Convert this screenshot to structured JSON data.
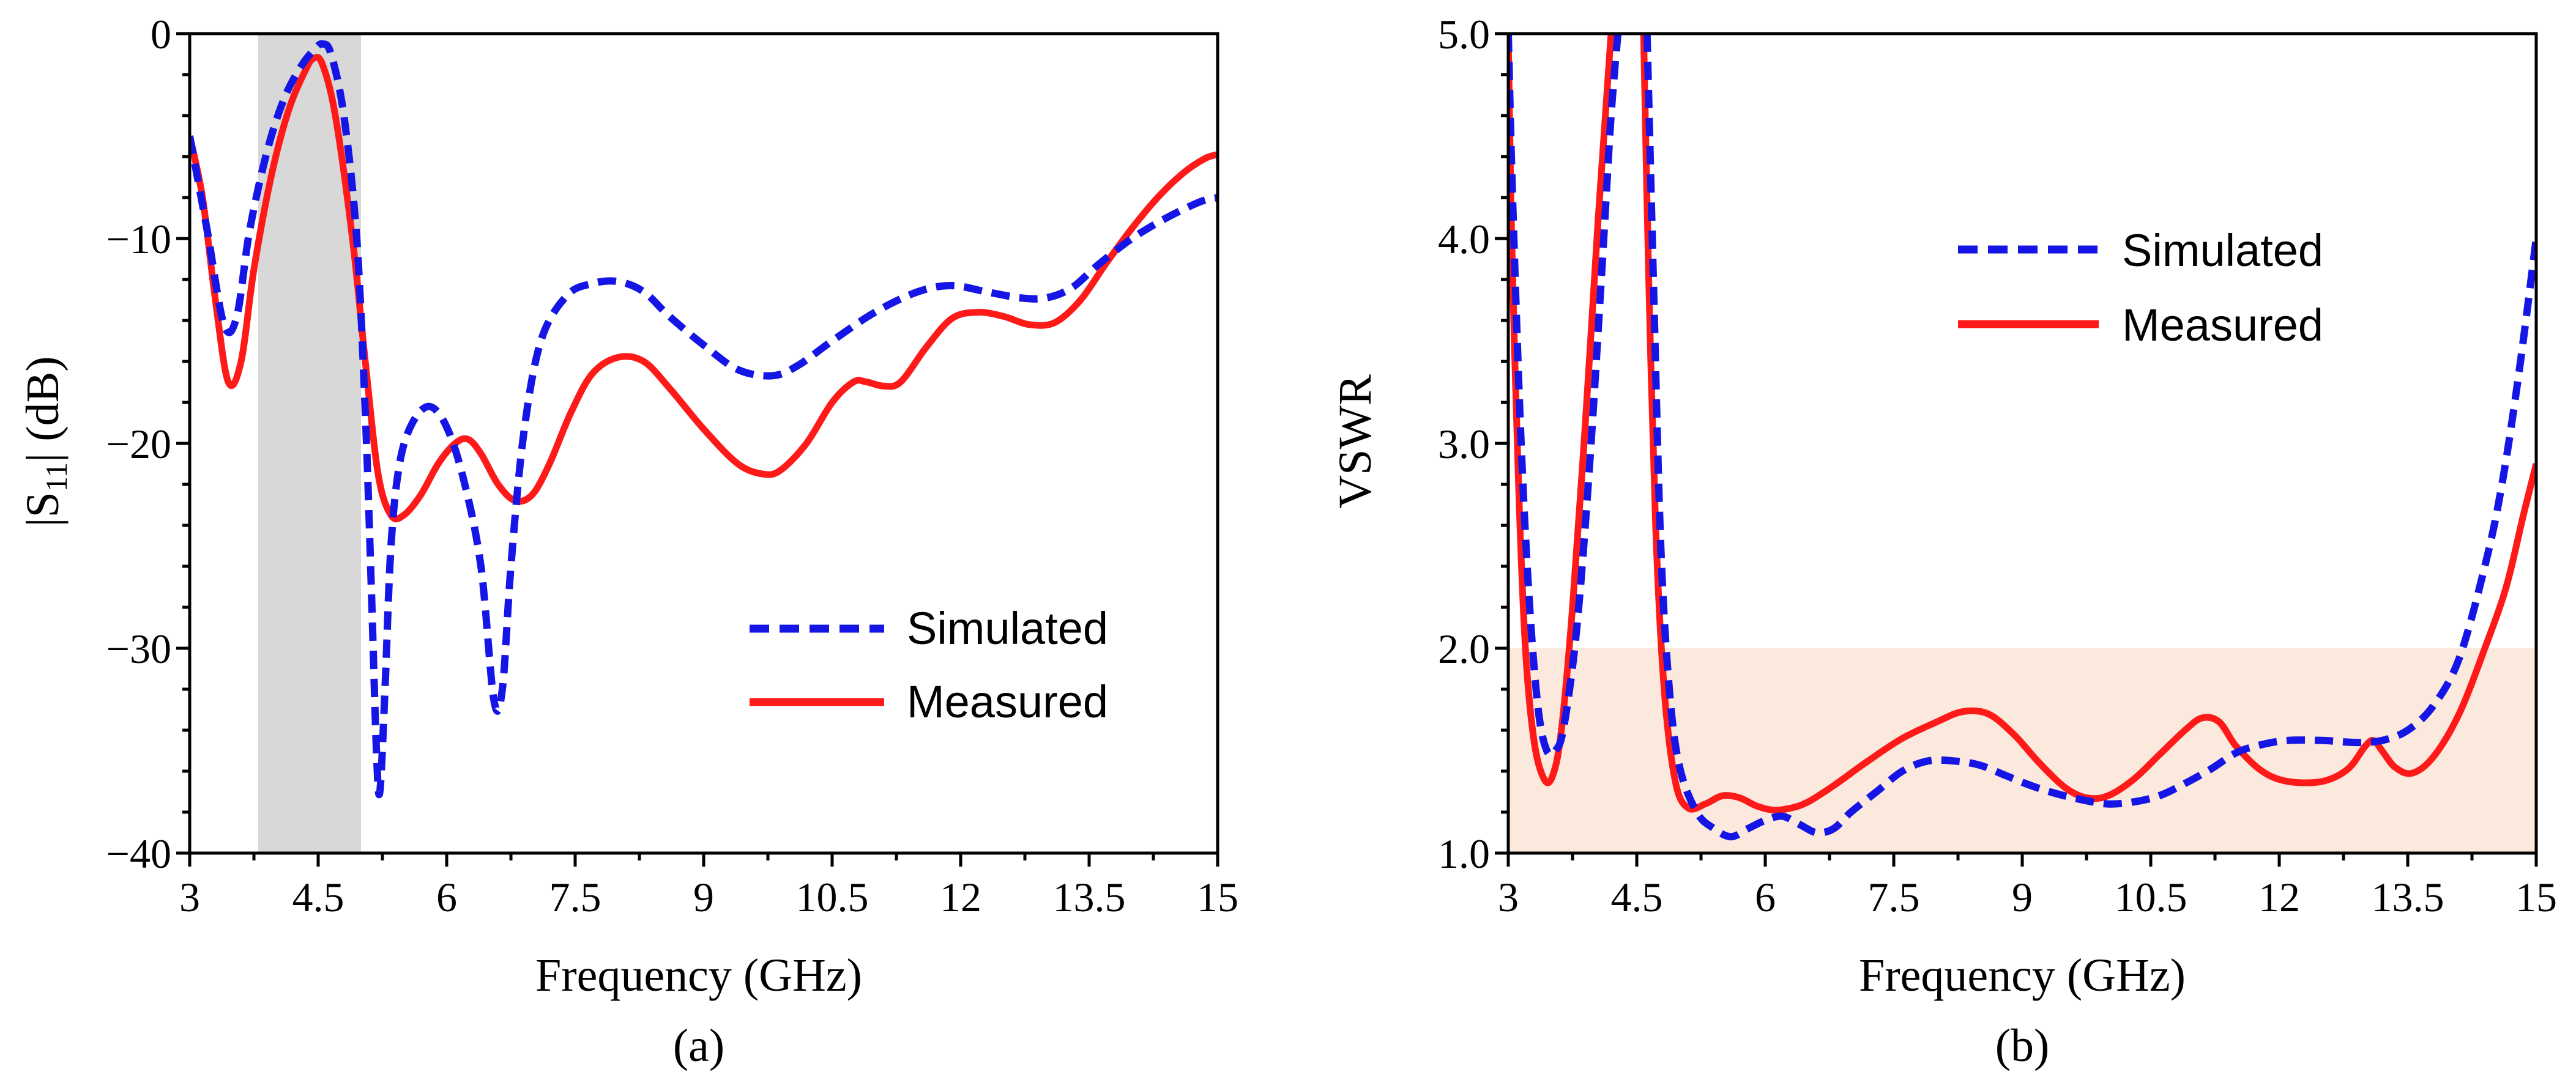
{
  "chart_data": [
    {
      "panel_label": "(a)",
      "type": "line",
      "xlabel": "Frequency (GHz)",
      "ylabel_main": "|S",
      "ylabel_sub": "11",
      "ylabel_tail": "| (dB)",
      "xlim": [
        3,
        15
      ],
      "ylim": [
        -40,
        0
      ],
      "xticks": [
        3,
        4.5,
        6,
        7.5,
        9,
        10.5,
        12,
        13.5,
        15
      ],
      "xtick_labels": [
        "3",
        "4.5",
        "6",
        "7.5",
        "9",
        "10.5",
        "12",
        "13.5",
        "15"
      ],
      "yticks": [
        0,
        -10,
        -20,
        -30,
        -40
      ],
      "ytick_labels": [
        "0",
        "−10",
        "−20",
        "−30",
        "−40"
      ],
      "shaded_band": {
        "x_range": [
          3.8,
          5.0
        ],
        "color": "#d8d8d8"
      },
      "legend": {
        "placement": "bottom-right",
        "entries": [
          "Simulated",
          "Measured"
        ]
      },
      "series": [
        {
          "name": "Simulated",
          "style": "dashed",
          "color": "#1515e6",
          "points": [
            [
              3.0,
              -5.0
            ],
            [
              3.2,
              -9.5
            ],
            [
              3.4,
              -14.2
            ],
            [
              3.55,
              -13.8
            ],
            [
              3.7,
              -9.6
            ],
            [
              3.9,
              -5.8
            ],
            [
              4.1,
              -3.2
            ],
            [
              4.3,
              -1.6
            ],
            [
              4.45,
              -0.8
            ],
            [
              4.55,
              -0.5
            ],
            [
              4.65,
              -1.0
            ],
            [
              4.8,
              -4.0
            ],
            [
              4.95,
              -10.0
            ],
            [
              5.05,
              -18.5
            ],
            [
              5.12,
              -27.0
            ],
            [
              5.18,
              -35.0
            ],
            [
              5.22,
              -37.0
            ],
            [
              5.28,
              -32.0
            ],
            [
              5.35,
              -25.0
            ],
            [
              5.45,
              -21.0
            ],
            [
              5.6,
              -19.0
            ],
            [
              5.8,
              -18.2
            ],
            [
              6.0,
              -19.2
            ],
            [
              6.2,
              -21.8
            ],
            [
              6.4,
              -26.0
            ],
            [
              6.55,
              -32.5
            ],
            [
              6.65,
              -32.0
            ],
            [
              6.75,
              -26.0
            ],
            [
              6.9,
              -19.5
            ],
            [
              7.1,
              -15.0
            ],
            [
              7.4,
              -12.8
            ],
            [
              7.7,
              -12.2
            ],
            [
              8.0,
              -12.1
            ],
            [
              8.3,
              -12.6
            ],
            [
              8.6,
              -13.8
            ],
            [
              9.0,
              -15.2
            ],
            [
              9.4,
              -16.4
            ],
            [
              9.8,
              -16.7
            ],
            [
              10.1,
              -16.2
            ],
            [
              10.5,
              -15.0
            ],
            [
              11.0,
              -13.6
            ],
            [
              11.5,
              -12.6
            ],
            [
              11.9,
              -12.3
            ],
            [
              12.3,
              -12.6
            ],
            [
              12.7,
              -12.9
            ],
            [
              13.0,
              -12.9
            ],
            [
              13.3,
              -12.4
            ],
            [
              13.6,
              -11.3
            ],
            [
              14.0,
              -10.0
            ],
            [
              14.4,
              -9.0
            ],
            [
              14.8,
              -8.2
            ],
            [
              15.0,
              -8.0
            ]
          ]
        },
        {
          "name": "Measured",
          "style": "solid",
          "color": "#ff1a1a",
          "points": [
            [
              3.0,
              -5.0
            ],
            [
              3.15,
              -8.0
            ],
            [
              3.3,
              -13.0
            ],
            [
              3.45,
              -17.0
            ],
            [
              3.6,
              -16.0
            ],
            [
              3.75,
              -11.5
            ],
            [
              3.95,
              -7.0
            ],
            [
              4.15,
              -3.8
            ],
            [
              4.35,
              -1.8
            ],
            [
              4.45,
              -1.2
            ],
            [
              4.55,
              -1.5
            ],
            [
              4.7,
              -4.0
            ],
            [
              4.9,
              -10.0
            ],
            [
              5.05,
              -16.0
            ],
            [
              5.2,
              -21.5
            ],
            [
              5.35,
              -23.5
            ],
            [
              5.5,
              -23.5
            ],
            [
              5.7,
              -22.5
            ],
            [
              5.9,
              -21.0
            ],
            [
              6.1,
              -20.0
            ],
            [
              6.25,
              -19.8
            ],
            [
              6.4,
              -20.5
            ],
            [
              6.6,
              -22.0
            ],
            [
              6.8,
              -22.8
            ],
            [
              7.0,
              -22.5
            ],
            [
              7.2,
              -21.0
            ],
            [
              7.45,
              -18.5
            ],
            [
              7.7,
              -16.6
            ],
            [
              8.0,
              -15.8
            ],
            [
              8.3,
              -16.0
            ],
            [
              8.6,
              -17.3
            ],
            [
              9.0,
              -19.3
            ],
            [
              9.4,
              -21.0
            ],
            [
              9.7,
              -21.5
            ],
            [
              9.9,
              -21.3
            ],
            [
              10.2,
              -20.0
            ],
            [
              10.5,
              -18.0
            ],
            [
              10.75,
              -17.0
            ],
            [
              10.9,
              -17.0
            ],
            [
              11.1,
              -17.2
            ],
            [
              11.3,
              -17.0
            ],
            [
              11.6,
              -15.3
            ],
            [
              11.9,
              -13.9
            ],
            [
              12.2,
              -13.6
            ],
            [
              12.5,
              -13.8
            ],
            [
              12.8,
              -14.2
            ],
            [
              13.1,
              -14.1
            ],
            [
              13.4,
              -13.0
            ],
            [
              13.7,
              -11.2
            ],
            [
              14.0,
              -9.5
            ],
            [
              14.3,
              -8.0
            ],
            [
              14.6,
              -6.8
            ],
            [
              14.85,
              -6.1
            ],
            [
              15.0,
              -5.9
            ]
          ]
        }
      ]
    },
    {
      "panel_label": "(b)",
      "type": "line",
      "xlabel": "Frequency (GHz)",
      "ylabel": "VSWR",
      "xlim": [
        3,
        15
      ],
      "ylim": [
        1,
        5
      ],
      "xticks": [
        3,
        4.5,
        6,
        7.5,
        9,
        10.5,
        12,
        13.5,
        15
      ],
      "xtick_labels": [
        "3",
        "4.5",
        "6",
        "7.5",
        "9",
        "10.5",
        "12",
        "13.5",
        "15"
      ],
      "yticks": [
        1,
        2,
        3,
        4,
        5
      ],
      "ytick_labels": [
        "1.0",
        "2.0",
        "3.0",
        "4.0",
        "5.0"
      ],
      "shaded_band": {
        "y_range": [
          1,
          2
        ],
        "color": "#fbe9dd"
      },
      "legend": {
        "placement": "top-right",
        "entries": [
          "Simulated",
          "Measured"
        ]
      },
      "series": [
        {
          "name": "Simulated",
          "style": "dashed",
          "color": "#1515e6",
          "points": [
            [
              3.0,
              5.0
            ],
            [
              3.05,
              4.2
            ],
            [
              3.15,
              3.0
            ],
            [
              3.25,
              2.2
            ],
            [
              3.35,
              1.7
            ],
            [
              3.45,
              1.5
            ],
            [
              3.55,
              1.5
            ],
            [
              3.65,
              1.62
            ],
            [
              3.8,
              2.1
            ],
            [
              3.95,
              2.9
            ],
            [
              4.1,
              3.9
            ],
            [
              4.2,
              4.6
            ],
            [
              4.28,
              5.0
            ],
            null,
            [
              4.62,
              5.0
            ],
            [
              4.7,
              3.7
            ],
            [
              4.78,
              2.5
            ],
            [
              4.88,
              1.8
            ],
            [
              5.0,
              1.42
            ],
            [
              5.2,
              1.2
            ],
            [
              5.4,
              1.12
            ],
            [
              5.6,
              1.08
            ],
            [
              5.8,
              1.12
            ],
            [
              6.0,
              1.16
            ],
            [
              6.2,
              1.18
            ],
            [
              6.4,
              1.14
            ],
            [
              6.6,
              1.1
            ],
            [
              6.8,
              1.12
            ],
            [
              7.0,
              1.2
            ],
            [
              7.3,
              1.3
            ],
            [
              7.6,
              1.4
            ],
            [
              7.9,
              1.45
            ],
            [
              8.2,
              1.45
            ],
            [
              8.5,
              1.43
            ],
            [
              8.8,
              1.38
            ],
            [
              9.1,
              1.33
            ],
            [
              9.4,
              1.29
            ],
            [
              9.7,
              1.26
            ],
            [
              10.0,
              1.24
            ],
            [
              10.3,
              1.25
            ],
            [
              10.6,
              1.28
            ],
            [
              10.9,
              1.34
            ],
            [
              11.2,
              1.41
            ],
            [
              11.5,
              1.49
            ],
            [
              11.8,
              1.53
            ],
            [
              12.1,
              1.55
            ],
            [
              12.5,
              1.55
            ],
            [
              12.9,
              1.54
            ],
            [
              13.2,
              1.55
            ],
            [
              13.5,
              1.6
            ],
            [
              13.8,
              1.72
            ],
            [
              14.1,
              1.95
            ],
            [
              14.4,
              2.4
            ],
            [
              14.6,
              2.8
            ],
            [
              14.8,
              3.35
            ],
            [
              15.0,
              4.0
            ]
          ]
        },
        {
          "name": "Measured",
          "style": "solid",
          "color": "#ff1a1a",
          "points": [
            [
              3.0,
              5.0
            ],
            [
              3.04,
              4.0
            ],
            [
              3.12,
              2.8
            ],
            [
              3.2,
              2.0
            ],
            [
              3.3,
              1.55
            ],
            [
              3.42,
              1.36
            ],
            [
              3.52,
              1.38
            ],
            [
              3.62,
              1.6
            ],
            [
              3.75,
              2.2
            ],
            [
              3.9,
              3.1
            ],
            [
              4.05,
              4.1
            ],
            [
              4.15,
              4.7
            ],
            [
              4.2,
              5.0
            ],
            null,
            [
              4.58,
              5.0
            ],
            [
              4.64,
              3.8
            ],
            [
              4.72,
              2.6
            ],
            [
              4.82,
              1.8
            ],
            [
              4.95,
              1.35
            ],
            [
              5.1,
              1.22
            ],
            [
              5.3,
              1.24
            ],
            [
              5.5,
              1.28
            ],
            [
              5.7,
              1.27
            ],
            [
              5.9,
              1.23
            ],
            [
              6.1,
              1.21
            ],
            [
              6.3,
              1.22
            ],
            [
              6.5,
              1.25
            ],
            [
              6.8,
              1.33
            ],
            [
              7.2,
              1.45
            ],
            [
              7.6,
              1.56
            ],
            [
              8.0,
              1.64
            ],
            [
              8.3,
              1.69
            ],
            [
              8.6,
              1.68
            ],
            [
              8.9,
              1.58
            ],
            [
              9.2,
              1.44
            ],
            [
              9.5,
              1.32
            ],
            [
              9.75,
              1.27
            ],
            [
              10.0,
              1.28
            ],
            [
              10.3,
              1.36
            ],
            [
              10.6,
              1.48
            ],
            [
              10.9,
              1.6
            ],
            [
              11.1,
              1.66
            ],
            [
              11.3,
              1.64
            ],
            [
              11.5,
              1.52
            ],
            [
              11.8,
              1.4
            ],
            [
              12.1,
              1.35
            ],
            [
              12.5,
              1.35
            ],
            [
              12.8,
              1.41
            ],
            [
              13.0,
              1.52
            ],
            [
              13.1,
              1.55
            ],
            [
              13.2,
              1.5
            ],
            [
              13.35,
              1.42
            ],
            [
              13.55,
              1.39
            ],
            [
              13.8,
              1.47
            ],
            [
              14.1,
              1.68
            ],
            [
              14.4,
              2.0
            ],
            [
              14.65,
              2.3
            ],
            [
              14.85,
              2.65
            ],
            [
              15.0,
              2.9
            ]
          ]
        }
      ]
    }
  ]
}
